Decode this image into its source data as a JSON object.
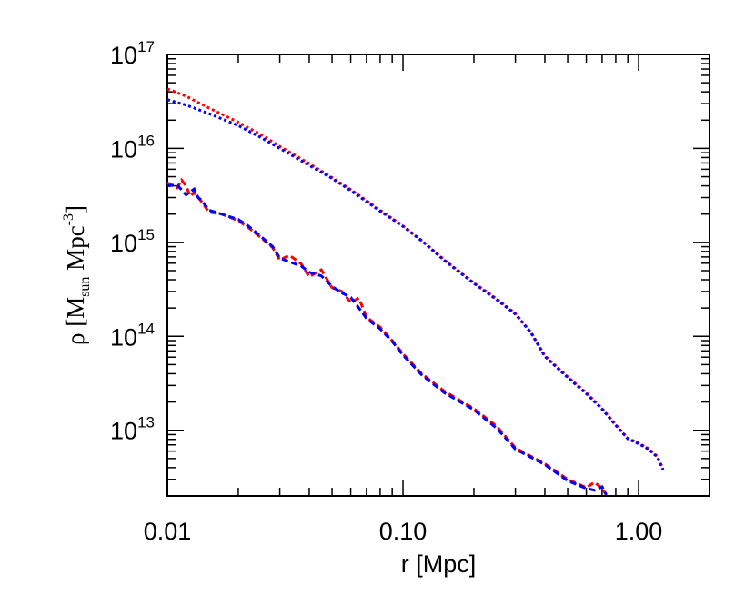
{
  "chart_data": {
    "type": "line",
    "x_scale": "log",
    "y_scale": "log",
    "xlim": [
      0.01,
      2.0
    ],
    "ylim": [
      2000000000000.0,
      1e+17
    ],
    "xlabel": "r [Mpc]",
    "ylabel": {
      "base": "ρ [M",
      "sub": "sun",
      "mid": " Mpc",
      "sup": "-3",
      "end": "]"
    },
    "x_ticks": [
      {
        "value": 0.01,
        "label": "0.01"
      },
      {
        "value": 0.1,
        "label": "0.10"
      },
      {
        "value": 1.0,
        "label": "1.00"
      }
    ],
    "y_ticks": [
      {
        "value": 10000000000000.0,
        "base": "10",
        "exp": "13"
      },
      {
        "value": 100000000000000.0,
        "base": "10",
        "exp": "14"
      },
      {
        "value": 1000000000000000.0,
        "base": "10",
        "exp": "15"
      },
      {
        "value": 1e+16,
        "base": "10",
        "exp": "16"
      },
      {
        "value": 1e+17,
        "base": "10",
        "exp": "17"
      }
    ],
    "grid": false,
    "legend": "none",
    "series": [
      {
        "color": "#ff0000",
        "style": "dotted",
        "x": [
          0.01,
          0.012,
          0.015,
          0.02,
          0.025,
          0.03,
          0.04,
          0.05,
          0.06,
          0.08,
          0.1,
          0.12,
          0.15,
          0.2,
          0.25,
          0.3,
          0.35,
          0.4,
          0.5,
          0.6,
          0.7,
          0.8,
          0.9,
          1.0,
          1.1,
          1.2,
          1.27
        ],
        "y": [
          4.3e+16,
          3.6e+16,
          2.7e+16,
          1.9e+16,
          1.4e+16,
          1.05e+16,
          6900000000000000.0,
          4900000000000000.0,
          3650000000000000.0,
          2200000000000000.0,
          1500000000000000.0,
          1050000000000000.0,
          650000000000000.0,
          370000000000000.0,
          250000000000000.0,
          175000000000000.0,
          110000000000000.0,
          62000000000000.0,
          37000000000000.0,
          25000000000000.0,
          17000000000000.0,
          11500000000000.0,
          8200000000000.0,
          7300000000000.0,
          6400000000000.0,
          5300000000000.0,
          3900000000000.0
        ]
      },
      {
        "color": "#0000ff",
        "style": "dotted",
        "x": [
          0.01,
          0.012,
          0.015,
          0.02,
          0.025,
          0.03,
          0.04,
          0.05,
          0.06,
          0.08,
          0.1,
          0.12,
          0.15,
          0.2,
          0.25,
          0.3,
          0.35,
          0.4,
          0.5,
          0.6,
          0.7,
          0.8,
          0.9,
          1.0,
          1.1,
          1.2,
          1.27
        ],
        "y": [
          3.3e+16,
          2.9e+16,
          2.35e+16,
          1.75e+16,
          1.3e+16,
          1e+16,
          6600000000000000.0,
          4800000000000000.0,
          3550000000000000.0,
          2150000000000000.0,
          1480000000000000.0,
          1040000000000000.0,
          640000000000000.0,
          365000000000000.0,
          245000000000000.0,
          172000000000000.0,
          108000000000000.0,
          61000000000000.0,
          36500000000000.0,
          24500000000000.0,
          16800000000000.0,
          11300000000000.0,
          8100000000000.0,
          7200000000000.0,
          6300000000000.0,
          5200000000000.0,
          3800000000000.0
        ]
      },
      {
        "color": "#ff0000",
        "style": "dashed",
        "x": [
          0.01,
          0.011,
          0.0115,
          0.012,
          0.0125,
          0.013,
          0.014,
          0.015,
          0.017,
          0.02,
          0.022,
          0.025,
          0.028,
          0.03,
          0.033,
          0.037,
          0.04,
          0.045,
          0.05,
          0.055,
          0.06,
          0.065,
          0.07,
          0.08,
          0.09,
          0.1,
          0.12,
          0.15,
          0.2,
          0.25,
          0.3,
          0.4,
          0.5,
          0.6,
          0.65,
          0.7,
          0.73
        ],
        "y": [
          4300000000000000.0,
          3800000000000000.0,
          4600000000000000.0,
          4000000000000000.0,
          3100000000000000.0,
          3400000000000000.0,
          2700000000000000.0,
          2100000000000000.0,
          2000000000000000.0,
          1700000000000000.0,
          1450000000000000.0,
          1120000000000000.0,
          880000000000000.0,
          650000000000000.0,
          730000000000000.0,
          590000000000000.0,
          430000000000000.0,
          510000000000000.0,
          330000000000000.0,
          300000000000000.0,
          230000000000000.0,
          255000000000000.0,
          160000000000000.0,
          125000000000000.0,
          90000000000000.0,
          65000000000000.0,
          40000000000000.0,
          26000000000000.0,
          17000000000000.0,
          11000000000000.0,
          6500000000000.0,
          4400000000000.0,
          3000000000000.0,
          2450000000000.0,
          2800000000000.0,
          2400000000000.0,
          2050000000000.0
        ]
      },
      {
        "color": "#0000ff",
        "style": "dashed",
        "x": [
          0.01,
          0.011,
          0.012,
          0.013,
          0.0135,
          0.014,
          0.015,
          0.017,
          0.02,
          0.022,
          0.025,
          0.028,
          0.03,
          0.033,
          0.037,
          0.04,
          0.045,
          0.05,
          0.055,
          0.06,
          0.065,
          0.07,
          0.08,
          0.09,
          0.1,
          0.12,
          0.15,
          0.2,
          0.25,
          0.3,
          0.4,
          0.5,
          0.6,
          0.65,
          0.7,
          0.73
        ],
        "y": [
          4000000000000000.0,
          4100000000000000.0,
          3200000000000000.0,
          3700000000000000.0,
          3000000000000000.0,
          2800000000000000.0,
          2200000000000000.0,
          2000000000000000.0,
          1750000000000000.0,
          1500000000000000.0,
          1150000000000000.0,
          900000000000000.0,
          680000000000000.0,
          620000000000000.0,
          560000000000000.0,
          480000000000000.0,
          440000000000000.0,
          340000000000000.0,
          290000000000000.0,
          260000000000000.0,
          200000000000000.0,
          155000000000000.0,
          120000000000000.0,
          88000000000000.0,
          63000000000000.0,
          39000000000000.0,
          25000000000000.0,
          16500000000000.0,
          10500000000000.0,
          6300000000000.0,
          4300000000000.0,
          2900000000000.0,
          2400000000000.0,
          2300000000000.0,
          2500000000000.0,
          2050000000000.0
        ]
      }
    ]
  }
}
